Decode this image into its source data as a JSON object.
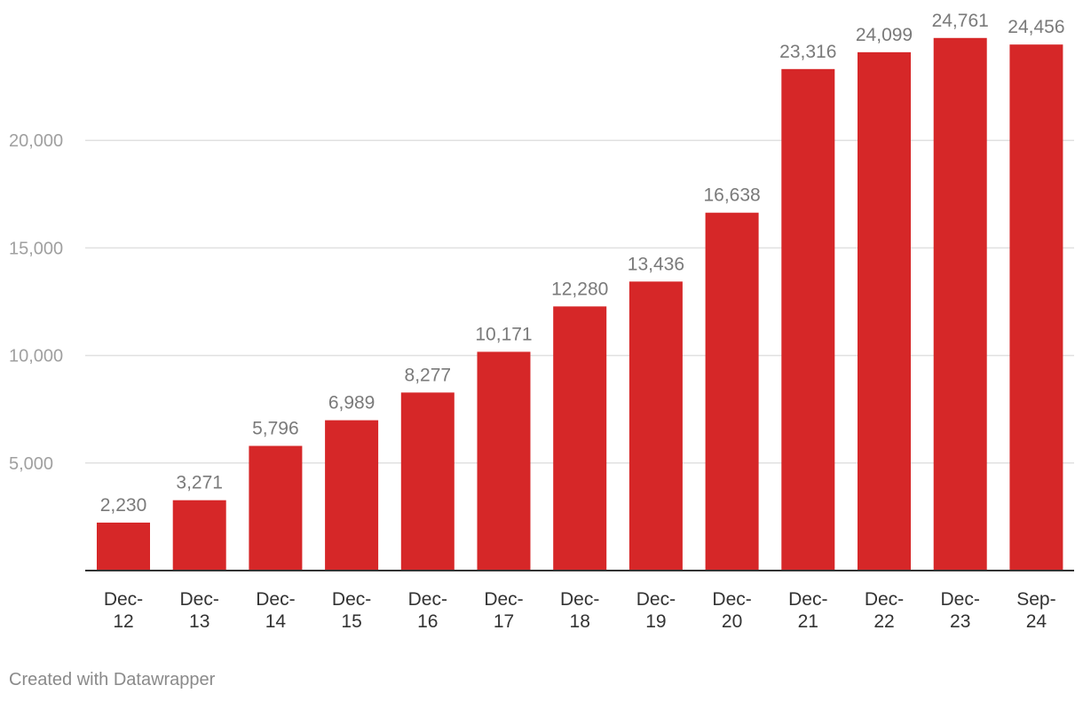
{
  "chart_data": {
    "type": "bar",
    "title": "",
    "xlabel": "",
    "ylabel": "",
    "categories": [
      [
        "Dec-",
        "12"
      ],
      [
        "Dec-",
        "13"
      ],
      [
        "Dec-",
        "14"
      ],
      [
        "Dec-",
        "15"
      ],
      [
        "Dec-",
        "16"
      ],
      [
        "Dec-",
        "17"
      ],
      [
        "Dec-",
        "18"
      ],
      [
        "Dec-",
        "19"
      ],
      [
        "Dec-",
        "20"
      ],
      [
        "Dec-",
        "21"
      ],
      [
        "Dec-",
        "22"
      ],
      [
        "Dec-",
        "23"
      ],
      [
        "Sep-",
        "24"
      ]
    ],
    "values": [
      2230,
      3271,
      5796,
      6989,
      8277,
      10171,
      12280,
      13436,
      16638,
      23316,
      24099,
      24761,
      24456
    ],
    "value_labels": [
      "2,230",
      "3,271",
      "5,796",
      "6,989",
      "8,277",
      "10,171",
      "12,280",
      "13,436",
      "16,638",
      "23,316",
      "24,099",
      "24,761",
      "24,456"
    ],
    "yticks": [
      5000,
      10000,
      15000,
      20000
    ],
    "ytick_labels": [
      "5,000",
      "10,000",
      "15,000",
      "20,000"
    ],
    "ylim": [
      0,
      26500
    ],
    "grid": true,
    "bar_color": "#d62728",
    "gridline_color": "#e0e0e0",
    "axis_color": "#333333",
    "tick_label_color": "#a0a0a0",
    "value_label_color": "#7a7a7a",
    "category_label_color": "#333333"
  },
  "credit": {
    "text": "Created with Datawrapper"
  }
}
